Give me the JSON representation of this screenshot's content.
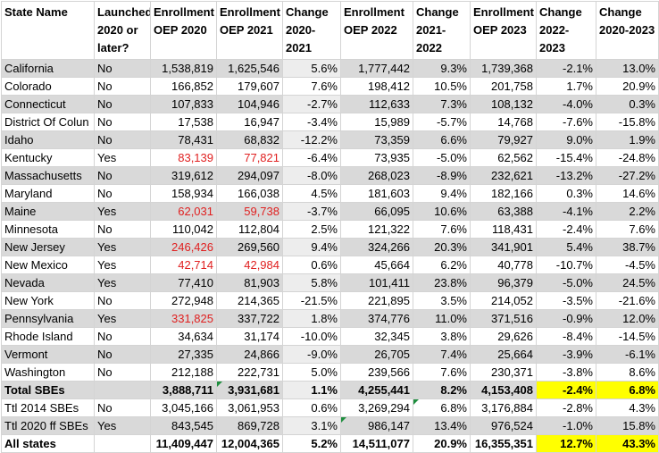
{
  "headers": [
    "State Name",
    "Launched 2020 or later?",
    "Enrollment OEP 2020",
    "Enrollment OEP 2021",
    "Change 2020-2021",
    "Enrollment OEP 2022",
    "Change 2021-2022",
    "Enrollment OEP 2023",
    "Change 2022-2023",
    "Change 2020-2023"
  ],
  "rows": [
    [
      "California",
      "No",
      "1,538,819",
      "1,625,546",
      "5.6%",
      "1,777,442",
      "9.3%",
      "1,739,368",
      "-2.1%",
      "13.0%"
    ],
    [
      "Colorado",
      "No",
      "166,852",
      "179,607",
      "7.6%",
      "198,412",
      "10.5%",
      "201,758",
      "1.7%",
      "20.9%"
    ],
    [
      "Connecticut",
      "No",
      "107,833",
      "104,946",
      "-2.7%",
      "112,633",
      "7.3%",
      "108,132",
      "-4.0%",
      "0.3%"
    ],
    [
      "District Of Colun",
      "No",
      "17,538",
      "16,947",
      "-3.4%",
      "15,989",
      "-5.7%",
      "14,768",
      "-7.6%",
      "-15.8%"
    ],
    [
      "Idaho",
      "No",
      "78,431",
      "68,832",
      "-12.2%",
      "73,359",
      "6.6%",
      "79,927",
      "9.0%",
      "1.9%"
    ],
    [
      "Kentucky",
      "Yes",
      "83,139",
      "77,821",
      "-6.4%",
      "73,935",
      "-5.0%",
      "62,562",
      "-15.4%",
      "-24.8%"
    ],
    [
      "Massachusetts",
      "No",
      "319,612",
      "294,097",
      "-8.0%",
      "268,023",
      "-8.9%",
      "232,621",
      "-13.2%",
      "-27.2%"
    ],
    [
      "Maryland",
      "No",
      "158,934",
      "166,038",
      "4.5%",
      "181,603",
      "9.4%",
      "182,166",
      "0.3%",
      "14.6%"
    ],
    [
      "Maine",
      "Yes",
      "62,031",
      "59,738",
      "-3.7%",
      "66,095",
      "10.6%",
      "63,388",
      "-4.1%",
      "2.2%"
    ],
    [
      "Minnesota",
      "No",
      "110,042",
      "112,804",
      "2.5%",
      "121,322",
      "7.6%",
      "118,431",
      "-2.4%",
      "7.6%"
    ],
    [
      "New Jersey",
      "Yes",
      "246,426",
      "269,560",
      "9.4%",
      "324,266",
      "20.3%",
      "341,901",
      "5.4%",
      "38.7%"
    ],
    [
      "New Mexico",
      "Yes",
      "42,714",
      "42,984",
      "0.6%",
      "45,664",
      "6.2%",
      "40,778",
      "-10.7%",
      "-4.5%"
    ],
    [
      "Nevada",
      "Yes",
      "77,410",
      "81,903",
      "5.8%",
      "101,411",
      "23.8%",
      "96,379",
      "-5.0%",
      "24.5%"
    ],
    [
      "New York",
      "No",
      "272,948",
      "214,365",
      "-21.5%",
      "221,895",
      "3.5%",
      "214,052",
      "-3.5%",
      "-21.6%"
    ],
    [
      "Pennsylvania",
      "Yes",
      "331,825",
      "337,722",
      "1.8%",
      "374,776",
      "11.0%",
      "371,516",
      "-0.9%",
      "12.0%"
    ],
    [
      "Rhode Island",
      "No",
      "34,634",
      "31,174",
      "-10.0%",
      "32,345",
      "3.8%",
      "29,626",
      "-8.4%",
      "-14.5%"
    ],
    [
      "Vermont",
      "No",
      "27,335",
      "24,866",
      "-9.0%",
      "26,705",
      "7.4%",
      "25,664",
      "-3.9%",
      "-6.1%"
    ],
    [
      "Washington",
      "No",
      "212,188",
      "222,731",
      "5.0%",
      "239,566",
      "7.6%",
      "230,371",
      "-3.8%",
      "8.6%"
    ],
    [
      "Total SBEs",
      "",
      "3,888,711",
      "3,931,681",
      "1.1%",
      "4,255,441",
      "8.2%",
      "4,153,408",
      "-2.4%",
      "6.8%"
    ],
    [
      "Ttl 2014 SBEs",
      "No",
      "3,045,166",
      "3,061,953",
      "0.6%",
      "3,269,294",
      "6.8%",
      "3,176,884",
      "-2.8%",
      "4.3%"
    ],
    [
      "Ttl 2020 ff SBEs",
      "Yes",
      "843,545",
      "869,728",
      "3.1%",
      "986,147",
      "13.4%",
      "976,524",
      "-1.0%",
      "15.8%"
    ],
    [
      "All states",
      "",
      "11,409,447",
      "12,004,365",
      "5.2%",
      "14,511,077",
      "20.9%",
      "16,355,351",
      "12.7%",
      "43.3%"
    ]
  ],
  "red_cells": [
    [
      5,
      2
    ],
    [
      5,
      3
    ],
    [
      8,
      2
    ],
    [
      8,
      3
    ],
    [
      10,
      2
    ],
    [
      11,
      2
    ],
    [
      11,
      3
    ],
    [
      14,
      2
    ]
  ],
  "highlight_cells": [
    [
      18,
      8
    ],
    [
      18,
      9
    ],
    [
      21,
      8
    ],
    [
      21,
      9
    ]
  ],
  "flag_cells": [
    [
      18,
      3
    ],
    [
      19,
      6
    ],
    [
      20,
      5
    ]
  ],
  "bold_rows": [
    18,
    21
  ],
  "colors": {
    "stripe": "#d9d9d9",
    "stripe_light": "#ededed",
    "red_text": "#e02020",
    "highlight": "#ffff00",
    "comment_flag": "#1e8e3e"
  }
}
